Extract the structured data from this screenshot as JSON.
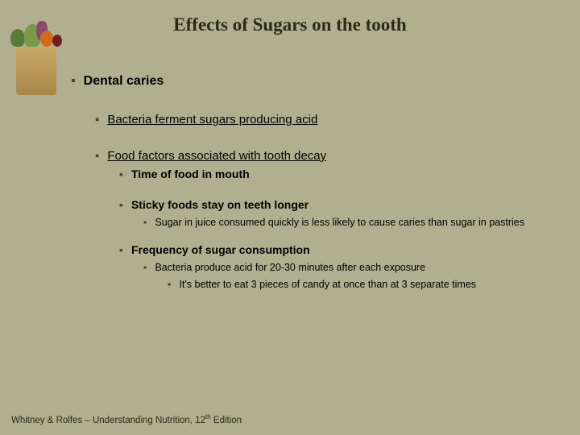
{
  "background_color": "#b0b090",
  "bullet_color": "#5a4030",
  "title": {
    "text": "Effects of Sugars on the tooth",
    "font_family": "Georgia, Times New Roman, serif",
    "font_size_pt": 20,
    "font_weight": "bold",
    "color": "#2a2a1a"
  },
  "content": {
    "lvl1": {
      "text": "Dental caries",
      "font_size_pt": 14
    },
    "lvl2a": {
      "text": "Bacteria ferment sugars producing acid",
      "font_size_pt": 13,
      "underline": true
    },
    "lvl2b": {
      "text": "Food factors associated with tooth decay",
      "font_size_pt": 13,
      "underline": true
    },
    "lvl3a": {
      "text": "Time of food in mouth",
      "font_size_pt": 12
    },
    "lvl3b": {
      "text": "Sticky foods stay on teeth longer",
      "font_size_pt": 12
    },
    "lvl4a": {
      "text": "Sugar in juice consumed quickly is less likely to cause caries than sugar in pastries",
      "font_size_pt": 11
    },
    "lvl3c": {
      "text": "Frequency of sugar consumption",
      "font_size_pt": 12
    },
    "lvl4b": {
      "text": "Bacteria produce acid for 20-30 minutes after each exposure",
      "font_size_pt": 11
    },
    "lvl5a": {
      "text": "It's better to eat 3 pieces of candy at once than at 3 separate times",
      "font_size_pt": 11
    }
  },
  "footer": {
    "prefix": "Whitney & Rolfes – Understanding Nutrition, 12",
    "sup": "th",
    "suffix": " Edition",
    "font_size_pt": 10,
    "color": "#2a2a1a"
  },
  "image": {
    "description": "grocery-bag-with-vegetables",
    "bag_color": "#c9a86a",
    "vegetable_colors": [
      "#5a7a3a",
      "#7a9a4a",
      "#d4691a",
      "#8b4a6a",
      "#692020"
    ]
  }
}
